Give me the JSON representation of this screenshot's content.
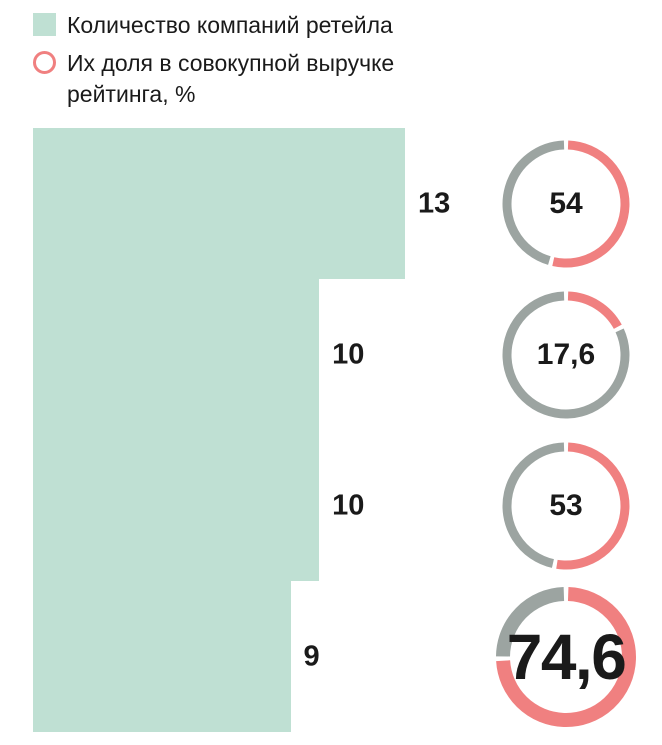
{
  "legend": {
    "bar_label": "Количество компаний ретейла",
    "ring_label": "Их доля в совокупной выручке рейтинга, %"
  },
  "colors": {
    "bar": "#bfe0d3",
    "ring_value": "#f08080",
    "ring_rest": "#9ca4a1",
    "text": "#1a1a1a"
  },
  "chart_data": {
    "type": "bar",
    "orientation": "horizontal",
    "categories": [
      "row-1",
      "row-2",
      "row-3",
      "row-4"
    ],
    "series": [
      {
        "name": "Количество компаний ретейла",
        "values": [
          13,
          10,
          10,
          9
        ]
      },
      {
        "name": "Их доля в совокупной выручке рейтинга, %",
        "values": [
          54,
          17.6,
          53,
          74.6
        ]
      }
    ],
    "value_labels": {
      "bars": [
        "13",
        "10",
        "10",
        "9"
      ],
      "rings": [
        "54",
        "17,6",
        "53",
        "74,6"
      ]
    },
    "xlim": [
      0,
      13
    ],
    "grid": false,
    "legend_position": "top-left",
    "ring_start_angle": "top",
    "ring_direction": "clockwise",
    "emphasized_row_label": "74,6"
  }
}
